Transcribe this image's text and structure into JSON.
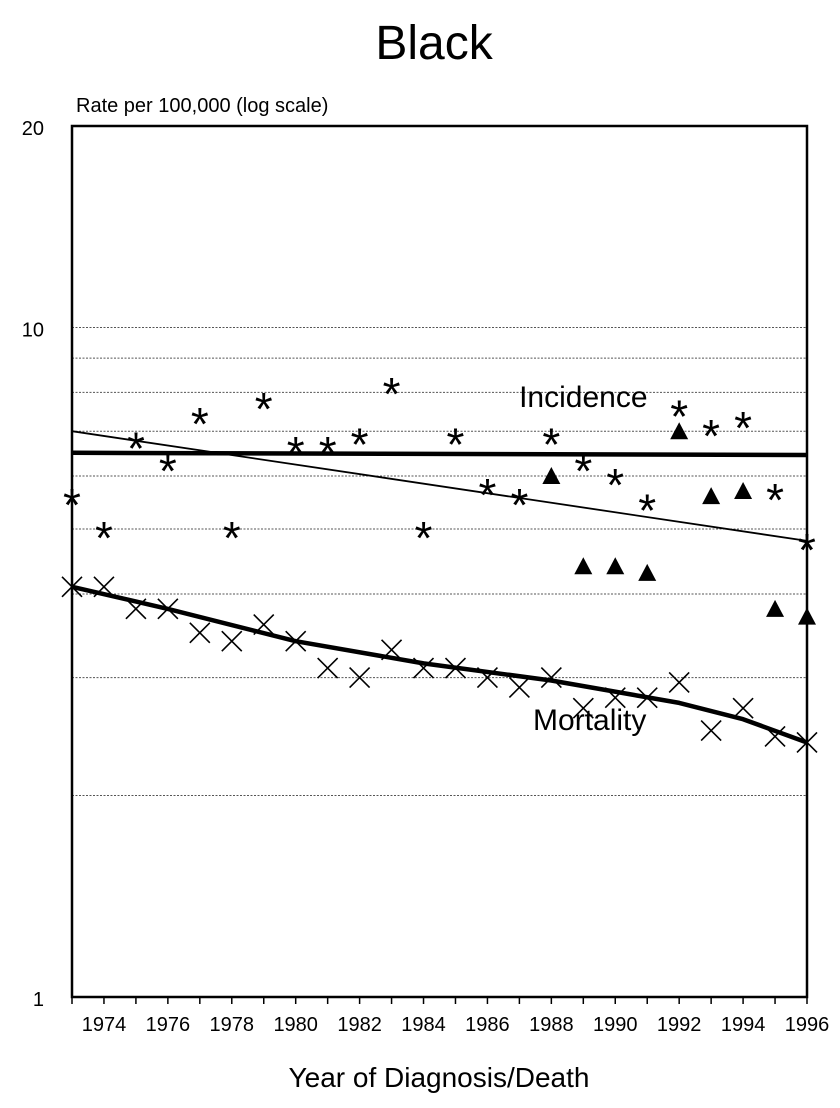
{
  "chart_data": {
    "type": "scatter",
    "title": "Black",
    "ylabel": "Rate per 100,000 (log scale)",
    "xlabel": "Year of Diagnosis/Death",
    "yscale": "log",
    "ylim": [
      1,
      20
    ],
    "xlim": [
      1973,
      1996
    ],
    "y_ticks": [
      {
        "value": 1,
        "label": "1"
      },
      {
        "value": 10,
        "label": "10"
      },
      {
        "value": 20,
        "label": "20"
      }
    ],
    "y_gridlines": [
      2,
      3,
      4,
      5,
      6,
      7,
      8,
      9,
      10
    ],
    "x_ticks": [
      1974,
      1976,
      1978,
      1980,
      1982,
      1984,
      1986,
      1988,
      1990,
      1992,
      1994,
      1996
    ],
    "x_tick_labels": [
      "1974",
      "1976",
      "1978",
      "1980",
      "1982",
      "1984",
      "1986",
      "1988",
      "1990",
      "1992",
      "1994",
      "1996"
    ],
    "grid": true,
    "annotations": [
      {
        "text": "Incidence",
        "x": 1989,
        "y": 7.9
      },
      {
        "text": "Mortality",
        "x": 1989.2,
        "y": 2.6
      }
    ],
    "series": [
      {
        "marker": "asterisk",
        "x": [
          1973,
          1974,
          1975,
          1976,
          1977,
          1978,
          1979,
          1980,
          1981,
          1982,
          1983,
          1984,
          1985,
          1986,
          1987,
          1988,
          1989,
          1990,
          1991,
          1992,
          1993,
          1994,
          1995
        ],
        "y": [
          5.6,
          5.0,
          6.8,
          6.3,
          7.4,
          5.0,
          7.8,
          6.7,
          6.7,
          6.9,
          8.2,
          5.0,
          6.9,
          5.8,
          5.6,
          6.9,
          6.3,
          6.0,
          5.5,
          7.6,
          7.1,
          7.3,
          5.7
        ]
      },
      {
        "marker": "asterisk",
        "x": [
          1996
        ],
        "y": [
          4.8
        ]
      },
      {
        "marker": "triangle",
        "x": [
          1988,
          1989,
          1990,
          1991,
          1992,
          1993,
          1994,
          1995,
          1996
        ],
        "y": [
          6.0,
          4.4,
          4.4,
          4.3,
          7.0,
          5.6,
          5.7,
          3.8,
          3.7
        ]
      },
      {
        "marker": "x",
        "x": [
          1973,
          1974,
          1975,
          1976,
          1977,
          1978,
          1979,
          1980,
          1981,
          1982,
          1983,
          1984,
          1985,
          1986,
          1987,
          1988,
          1989,
          1990,
          1991,
          1992,
          1993,
          1994,
          1995,
          1996
        ],
        "y": [
          4.1,
          4.1,
          3.8,
          3.8,
          3.5,
          3.4,
          3.6,
          3.4,
          3.1,
          3.0,
          3.3,
          3.1,
          3.1,
          3.0,
          2.9,
          3.0,
          2.7,
          2.8,
          2.8,
          2.95,
          2.5,
          2.7,
          2.45,
          2.4
        ]
      }
    ],
    "trend_lines": [
      {
        "style": "thick",
        "x": [
          1973,
          1996
        ],
        "y": [
          6.5,
          6.45
        ]
      },
      {
        "style": "thin",
        "x": [
          1973,
          1996
        ],
        "y": [
          7.0,
          4.8
        ]
      },
      {
        "style": "thick",
        "x": [
          1973,
          1976,
          1980,
          1984,
          1988,
          1992,
          1994,
          1996
        ],
        "y": [
          4.1,
          3.8,
          3.4,
          3.15,
          2.97,
          2.75,
          2.6,
          2.4
        ]
      }
    ]
  }
}
